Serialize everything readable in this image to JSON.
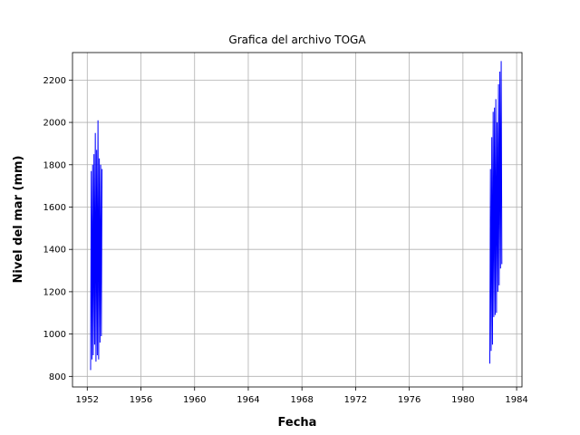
{
  "chart_data": {
    "type": "line",
    "title": "Grafica del archivo TOGA",
    "xlabel": "Fecha",
    "ylabel": "Nivel del mar (mm)",
    "xlim": [
      1950.9,
      1984.4
    ],
    "ylim": [
      750,
      2330
    ],
    "grid": true,
    "x_ticks": [
      1952,
      1956,
      1960,
      1964,
      1968,
      1972,
      1976,
      1980,
      1984
    ],
    "y_ticks": [
      800,
      1000,
      1200,
      1400,
      1600,
      1800,
      2000,
      2200
    ],
    "series": [
      {
        "color": "#0000ff",
        "x": [
          1952.25,
          1952.3,
          1952.35,
          1952.4,
          1952.45,
          1952.5,
          1952.55,
          1952.6,
          1952.65,
          1952.7,
          1952.75,
          1952.8,
          1952.85,
          1952.9,
          1952.95,
          1953.0,
          1953.05,
          1953.1
        ],
        "y": [
          830,
          1770,
          880,
          1800,
          900,
          1850,
          950,
          1950,
          870,
          1870,
          900,
          2010,
          880,
          1830,
          960,
          1800,
          990,
          1780
        ]
      },
      {
        "color": "#0000ff",
        "x": [
          1982.0,
          1982.05,
          1982.1,
          1982.15,
          1982.2,
          1982.25,
          1982.3,
          1982.35,
          1982.4,
          1982.45,
          1982.5,
          1982.55,
          1982.6,
          1982.65,
          1982.7,
          1982.75,
          1982.8,
          1982.85,
          1982.9
        ],
        "y": [
          860,
          1780,
          920,
          1930,
          950,
          2050,
          1080,
          2070,
          1090,
          2110,
          1100,
          2000,
          1200,
          2180,
          1230,
          2240,
          1310,
          2290,
          1330
        ]
      }
    ]
  }
}
